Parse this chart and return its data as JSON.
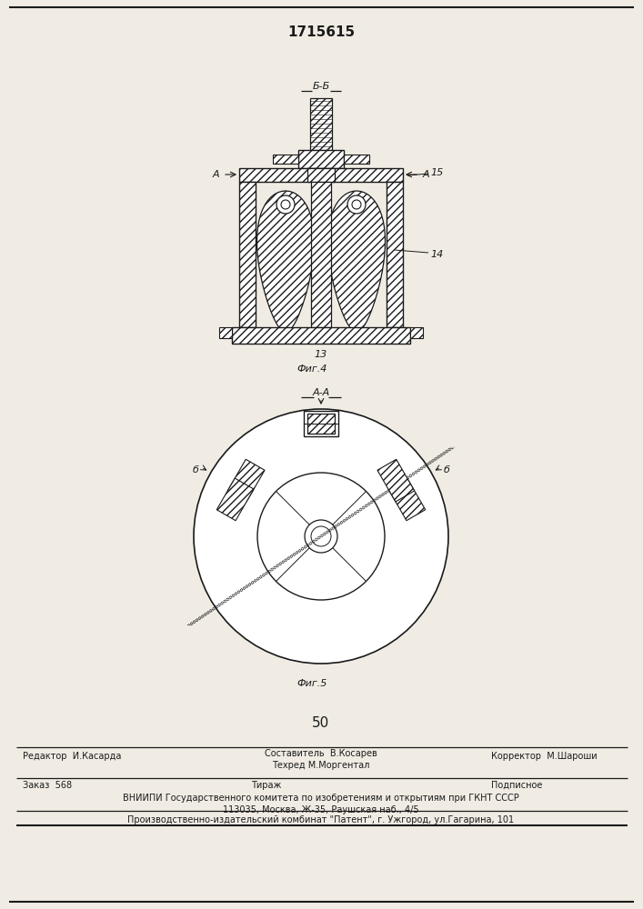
{
  "patent_number": "1715615",
  "page_number": "50",
  "bg_color": "#f0ece4",
  "line_color": "#1a1a1a",
  "fig4_label": "Фиг.4",
  "fig5_label": "Фиг.5",
  "section_bb": "Б-Б",
  "section_aa": "А-А",
  "label_13": "13",
  "label_14": "14",
  "label_15": "15",
  "editor_line": "Редактор  И.Касарда",
  "compositor_line": "Составитель  В.Косарев",
  "techred_line": "Техред М.Моргентал",
  "corrector_line": "Корректор  М.Шароши",
  "order_line": "Заказ  568",
  "tirazh_line": "Тираж",
  "podpisnoe_line": "Подписное",
  "vniip_line": "ВНИИПИ Государственного комитета по изобретениям и открытиям при ГКНТ СССР",
  "address_line": "113035, Москва, Ж-35, Раушская наб., 4/5",
  "factory_line": "Производственно-издательский комбинат \"Патент\", г. Ужгород, ул.Гагарина, 101"
}
